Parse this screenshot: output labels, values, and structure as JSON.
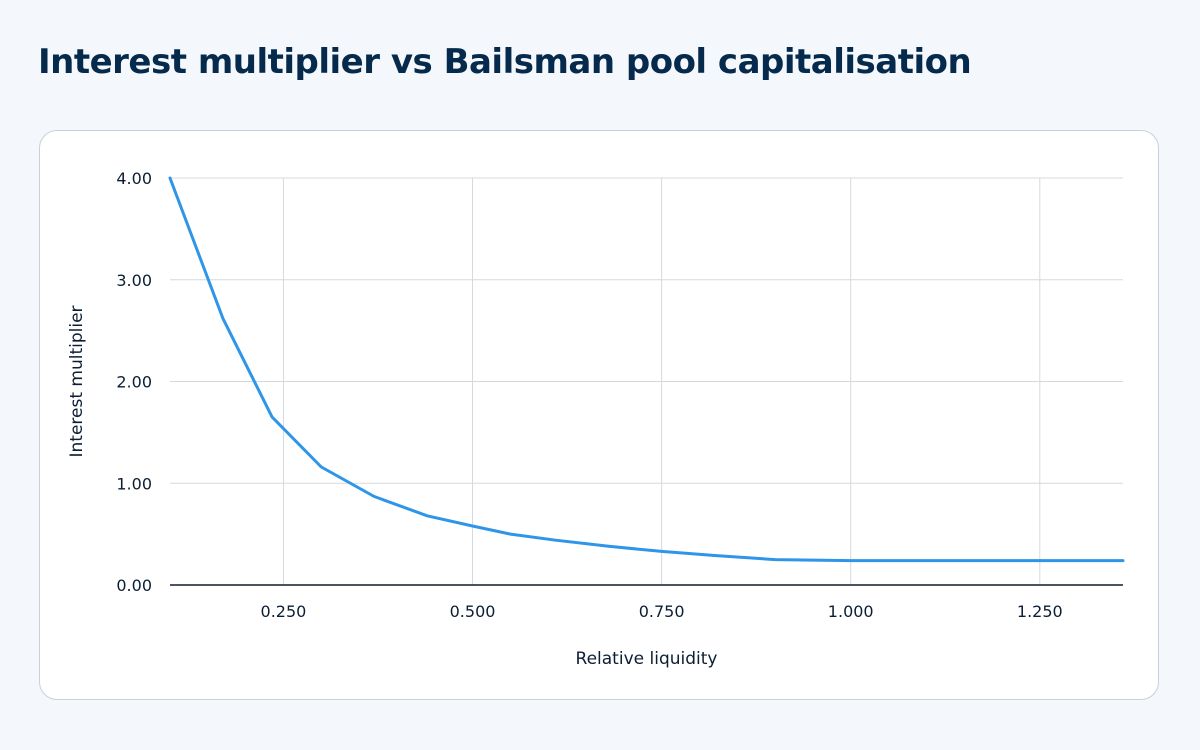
{
  "header": {
    "title": "Interest multiplier vs Bailsman pool capitalisation"
  },
  "chart_data": {
    "type": "line",
    "title": "Interest multiplier vs Bailsman pool capitalisation",
    "xlabel": "Relative liquidity",
    "ylabel": "Interest multiplier",
    "xlim": [
      0.1,
      1.36
    ],
    "ylim": [
      0,
      4
    ],
    "x_ticks": [
      0.25,
      0.5,
      0.75,
      1.0,
      1.25
    ],
    "x_tick_labels": [
      "0.250",
      "0.500",
      "0.750",
      "1.000",
      "1.250"
    ],
    "y_ticks": [
      0,
      1,
      2,
      3,
      4
    ],
    "y_tick_labels": [
      "0.00",
      "1.00",
      "2.00",
      "3.00",
      "4.00"
    ],
    "grid": true,
    "legend": "none",
    "series_color": "#2f95e8",
    "series": [
      {
        "x": [
          0.1,
          0.17,
          0.235,
          0.3,
          0.37,
          0.44,
          0.5,
          0.55,
          0.61,
          0.68,
          0.75,
          0.82,
          0.9,
          1.0,
          1.1,
          1.2,
          1.3,
          1.36
        ],
        "values": [
          4.0,
          2.62,
          1.65,
          1.16,
          0.87,
          0.68,
          0.58,
          0.5,
          0.44,
          0.38,
          0.33,
          0.29,
          0.25,
          0.24,
          0.24,
          0.24,
          0.24,
          0.24
        ]
      }
    ]
  }
}
